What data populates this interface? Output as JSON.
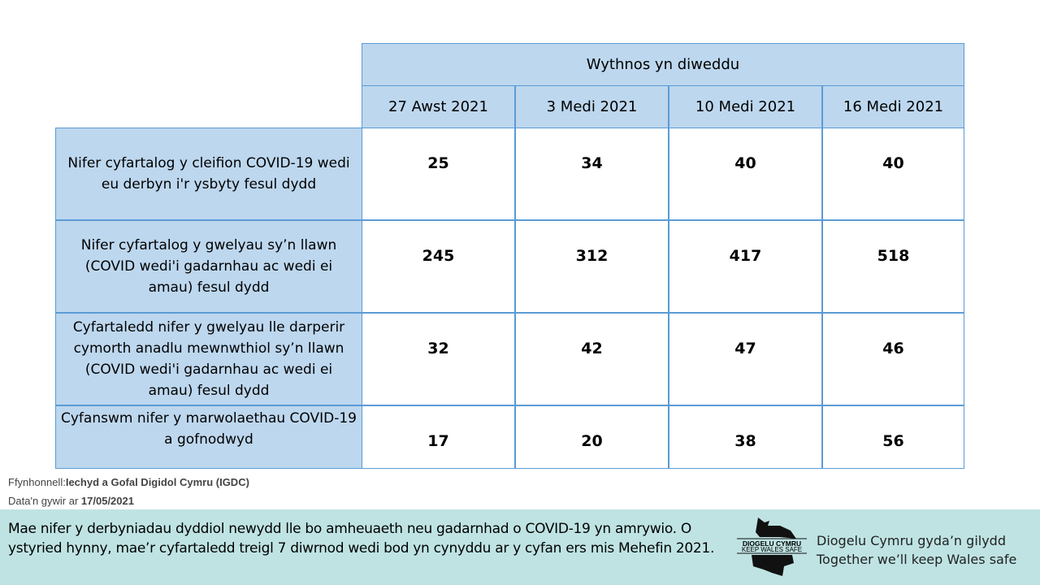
{
  "table": {
    "group_header": "Wythnos yn diweddu",
    "columns": [
      "27 Awst 2021",
      "3 Medi 2021",
      "10 Medi 2021",
      "16 Medi 2021"
    ],
    "rows": [
      {
        "label": "Nifer cyfartalog y cleifion COVID-19 wedi eu derbyn i'r ysbyty fesul dydd",
        "values": [
          "25",
          "34",
          "40",
          "40"
        ]
      },
      {
        "label": "Nifer cyfartalog y gwelyau sy’n llawn (COVID wedi'i gadarnhau ac wedi ei amau) fesul dydd",
        "values": [
          "245",
          "312",
          "417",
          "518"
        ]
      },
      {
        "label": "Cyfartaledd nifer y gwelyau lle darperir cymorth anadlu mewnwthiol sy’n llawn (COVID wedi'i gadarnhau ac wedi ei amau) fesul dydd",
        "values": [
          "32",
          "42",
          "47",
          "46"
        ]
      },
      {
        "label": "Cyfanswm nifer y marwolaethau COVID-19 a gofnodwyd",
        "values": [
          "17",
          "20",
          "38",
          "56"
        ]
      }
    ]
  },
  "source": {
    "prefix": "Ffynhonnell:",
    "name": "Iechyd a Gofal Digidol Cymru (IGDC)",
    "date_prefix": "Data'n gywir ar ",
    "date": "17/05/2021"
  },
  "footer": {
    "note": "Mae nifer y derbyniadau dyddiol newydd lle bo amheuaeth neu gadarnhad o COVID-19 yn amrywio. O ystyried hynny, mae’r cyfartaledd treigl 7 diwrnod wedi bod yn cynyddu ar y cyfan ers mis Mehefin 2021.",
    "logo_line1": "DIOGELU CYMRU",
    "logo_line2": "KEEP WALES SAFE",
    "tagline_cy": "Diogelu Cymru gyda’n gilydd",
    "tagline_en": "Together we’ll keep Wales safe"
  },
  "colors": {
    "header_fill": "#BDD7EE",
    "border": "#5B9BD5",
    "footer_band": "#BFE3E3"
  }
}
